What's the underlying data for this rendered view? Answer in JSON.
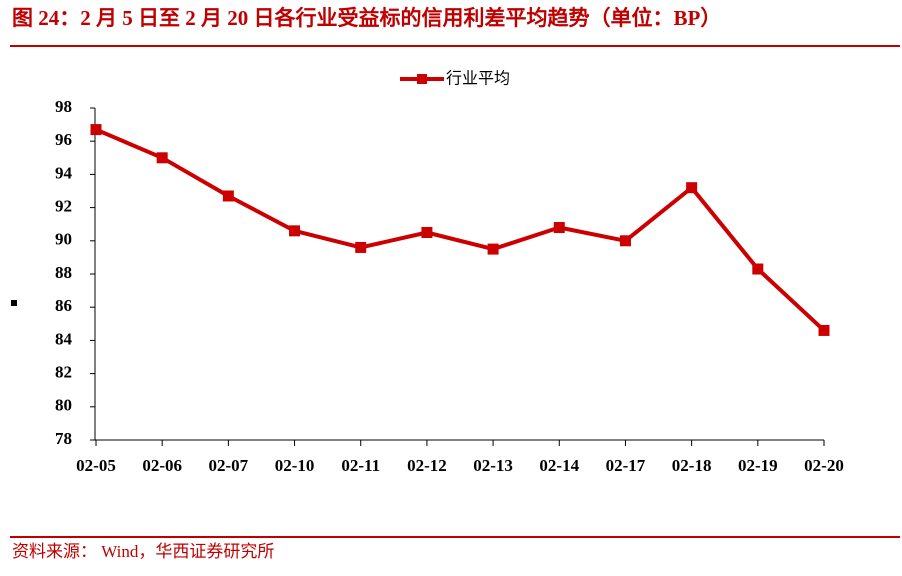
{
  "chart_data": {
    "type": "line",
    "title": "图 24：2 月 5 日至 2 月 20 日各行业受益标的信用利差平均趋势（单位：BP）",
    "source": "资料来源： Wind，华西证券研究所",
    "categories": [
      "02-05",
      "02-06",
      "02-07",
      "02-10",
      "02-11",
      "02-12",
      "02-13",
      "02-14",
      "02-17",
      "02-18",
      "02-19",
      "02-20"
    ],
    "series": [
      {
        "name": "行业平均",
        "color": "#cc0000",
        "values": [
          96.7,
          95.0,
          92.7,
          90.6,
          89.6,
          90.5,
          89.5,
          90.8,
          90.0,
          93.2,
          88.3,
          84.6
        ]
      }
    ],
    "ylim": [
      78,
      98
    ],
    "yticks": [
      78,
      80,
      82,
      84,
      86,
      88,
      90,
      92,
      94,
      96,
      98
    ],
    "legend": "top"
  }
}
